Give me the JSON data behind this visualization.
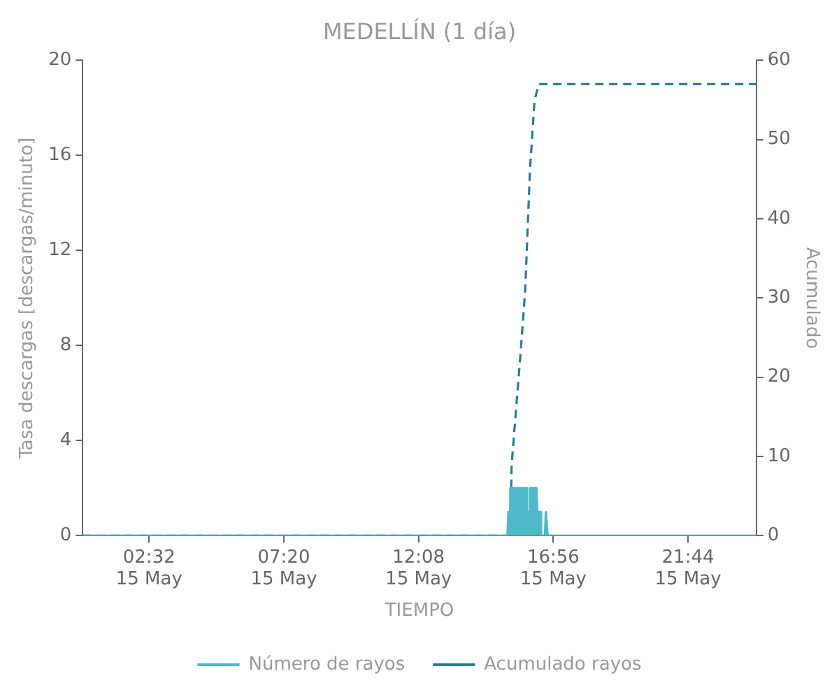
{
  "chart_data": {
    "type": "line",
    "title": "MEDELLÍN (1 día)",
    "xlabel": "TIEMPO",
    "ylabel": "Tasa descargas [descargas/minuto]",
    "y2label": "Acumulado",
    "xlim": [
      "--05-15T00:10",
      "--05-16T00:10"
    ],
    "xticks": [
      {
        "value": "--05-15T02:32",
        "label": "02:32\n15 May"
      },
      {
        "value": "--05-15T07:20",
        "label": "07:20\n15 May"
      },
      {
        "value": "--05-15T12:08",
        "label": "12:08\n15 May"
      },
      {
        "value": "--05-15T16:56",
        "label": "16:56\n15 May"
      },
      {
        "value": "--05-15T21:44",
        "label": "21:44\n15 May"
      }
    ],
    "ylim": [
      0,
      20
    ],
    "yticks": [
      0,
      4,
      8,
      12,
      16,
      20
    ],
    "y2lim": [
      0,
      60
    ],
    "y2ticks": [
      0,
      10,
      20,
      30,
      40,
      50,
      60
    ],
    "grid": false,
    "legend": "bottom",
    "marker": "none",
    "series": [
      {
        "name": "Número de rayos",
        "type": "area",
        "color": "#4fb8c9",
        "line_style": "solid",
        "x": [
          "--05-15T00:10",
          "--05-15T15:18",
          "--05-15T15:20",
          "--05-15T15:22",
          "--05-15T15:24",
          "--05-15T15:58",
          "--05-15T16:00",
          "--05-15T16:04",
          "--05-15T16:06",
          "--05-15T16:20",
          "--05-15T16:22",
          "--05-15T16:28",
          "--05-15T16:30",
          "--05-15T16:38",
          "--05-15T16:40",
          "--05-15T16:42",
          "--05-15T16:44",
          "--05-16T00:10"
        ],
        "values": [
          0,
          0,
          1,
          1,
          2,
          2,
          1,
          1,
          2,
          2,
          1,
          1,
          0,
          0,
          1,
          1,
          0,
          0
        ]
      },
      {
        "name": "Acumulado rayos",
        "type": "line",
        "axis": "y2",
        "color": "#2b7a99",
        "line_style": "dashed",
        "x": [
          "--05-15T00:10",
          "--05-15T15:24",
          "--05-15T15:27",
          "--05-15T15:46",
          "--05-15T15:56",
          "--05-15T16:06",
          "--05-15T16:16",
          "--05-15T16:25",
          "--05-16T00:10"
        ],
        "values": [
          0,
          0,
          9,
          23,
          31,
          46,
          55,
          57,
          57
        ]
      }
    ]
  }
}
